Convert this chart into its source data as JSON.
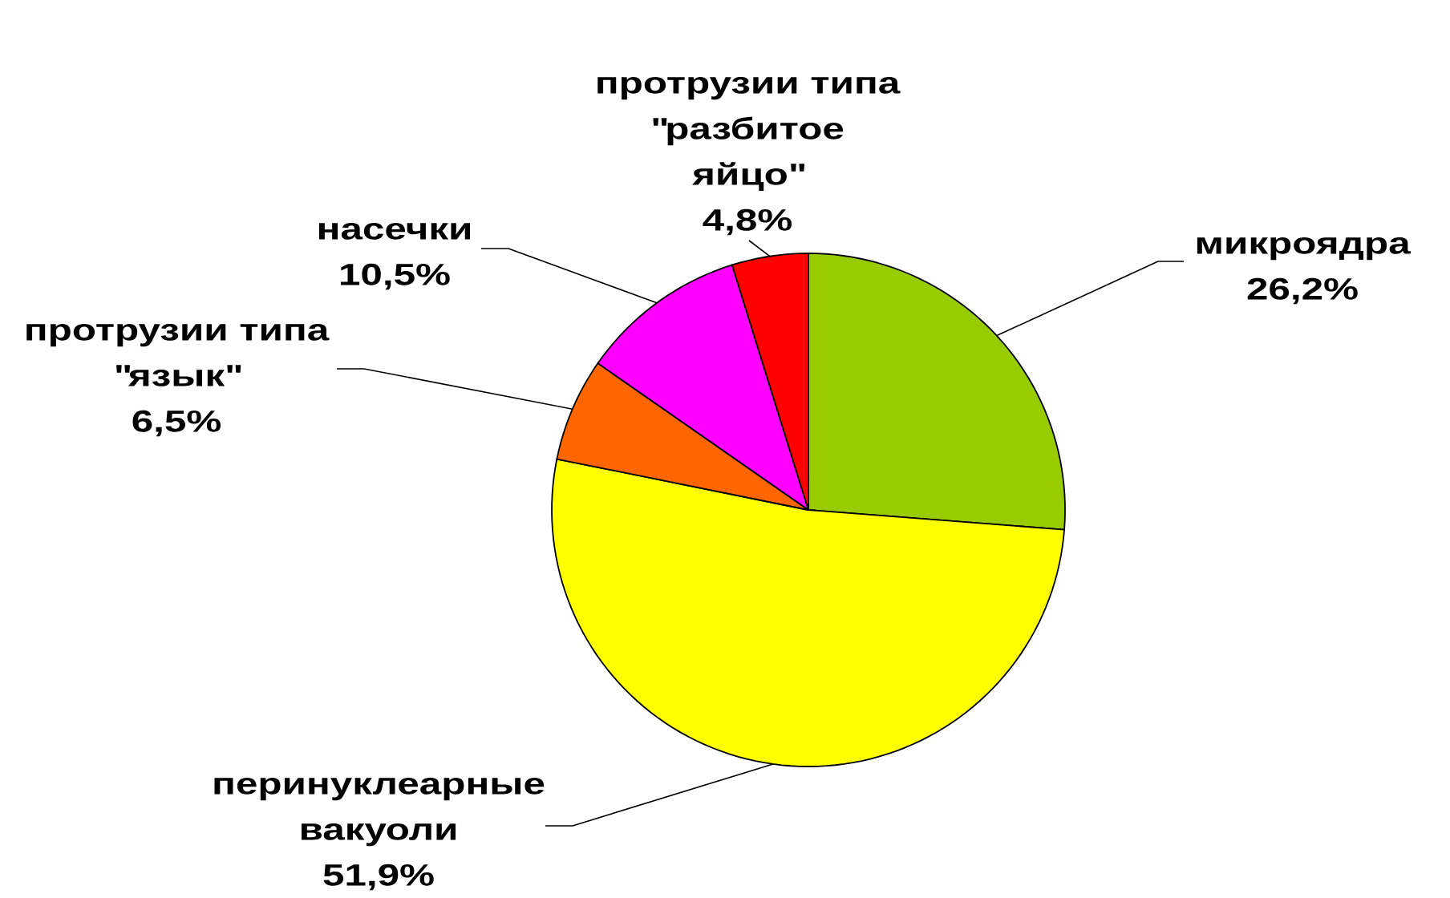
{
  "chart_data": {
    "type": "pie",
    "categories": [
      "микроядра",
      "перинуклеарные вакуоли",
      "протрузии типа \"язык\"",
      "насечки",
      "протрузии типа \"разбитое яйцо\""
    ],
    "values": [
      26.2,
      51.9,
      6.5,
      10.5,
      4.8
    ],
    "colors": [
      "#99cc00",
      "#ffff00",
      "#ff6600",
      "#ff00ff",
      "#ff0000"
    ],
    "value_labels": [
      "26,2%",
      "51,9%",
      "6,5%",
      "10,5%",
      "4,8%"
    ]
  }
}
